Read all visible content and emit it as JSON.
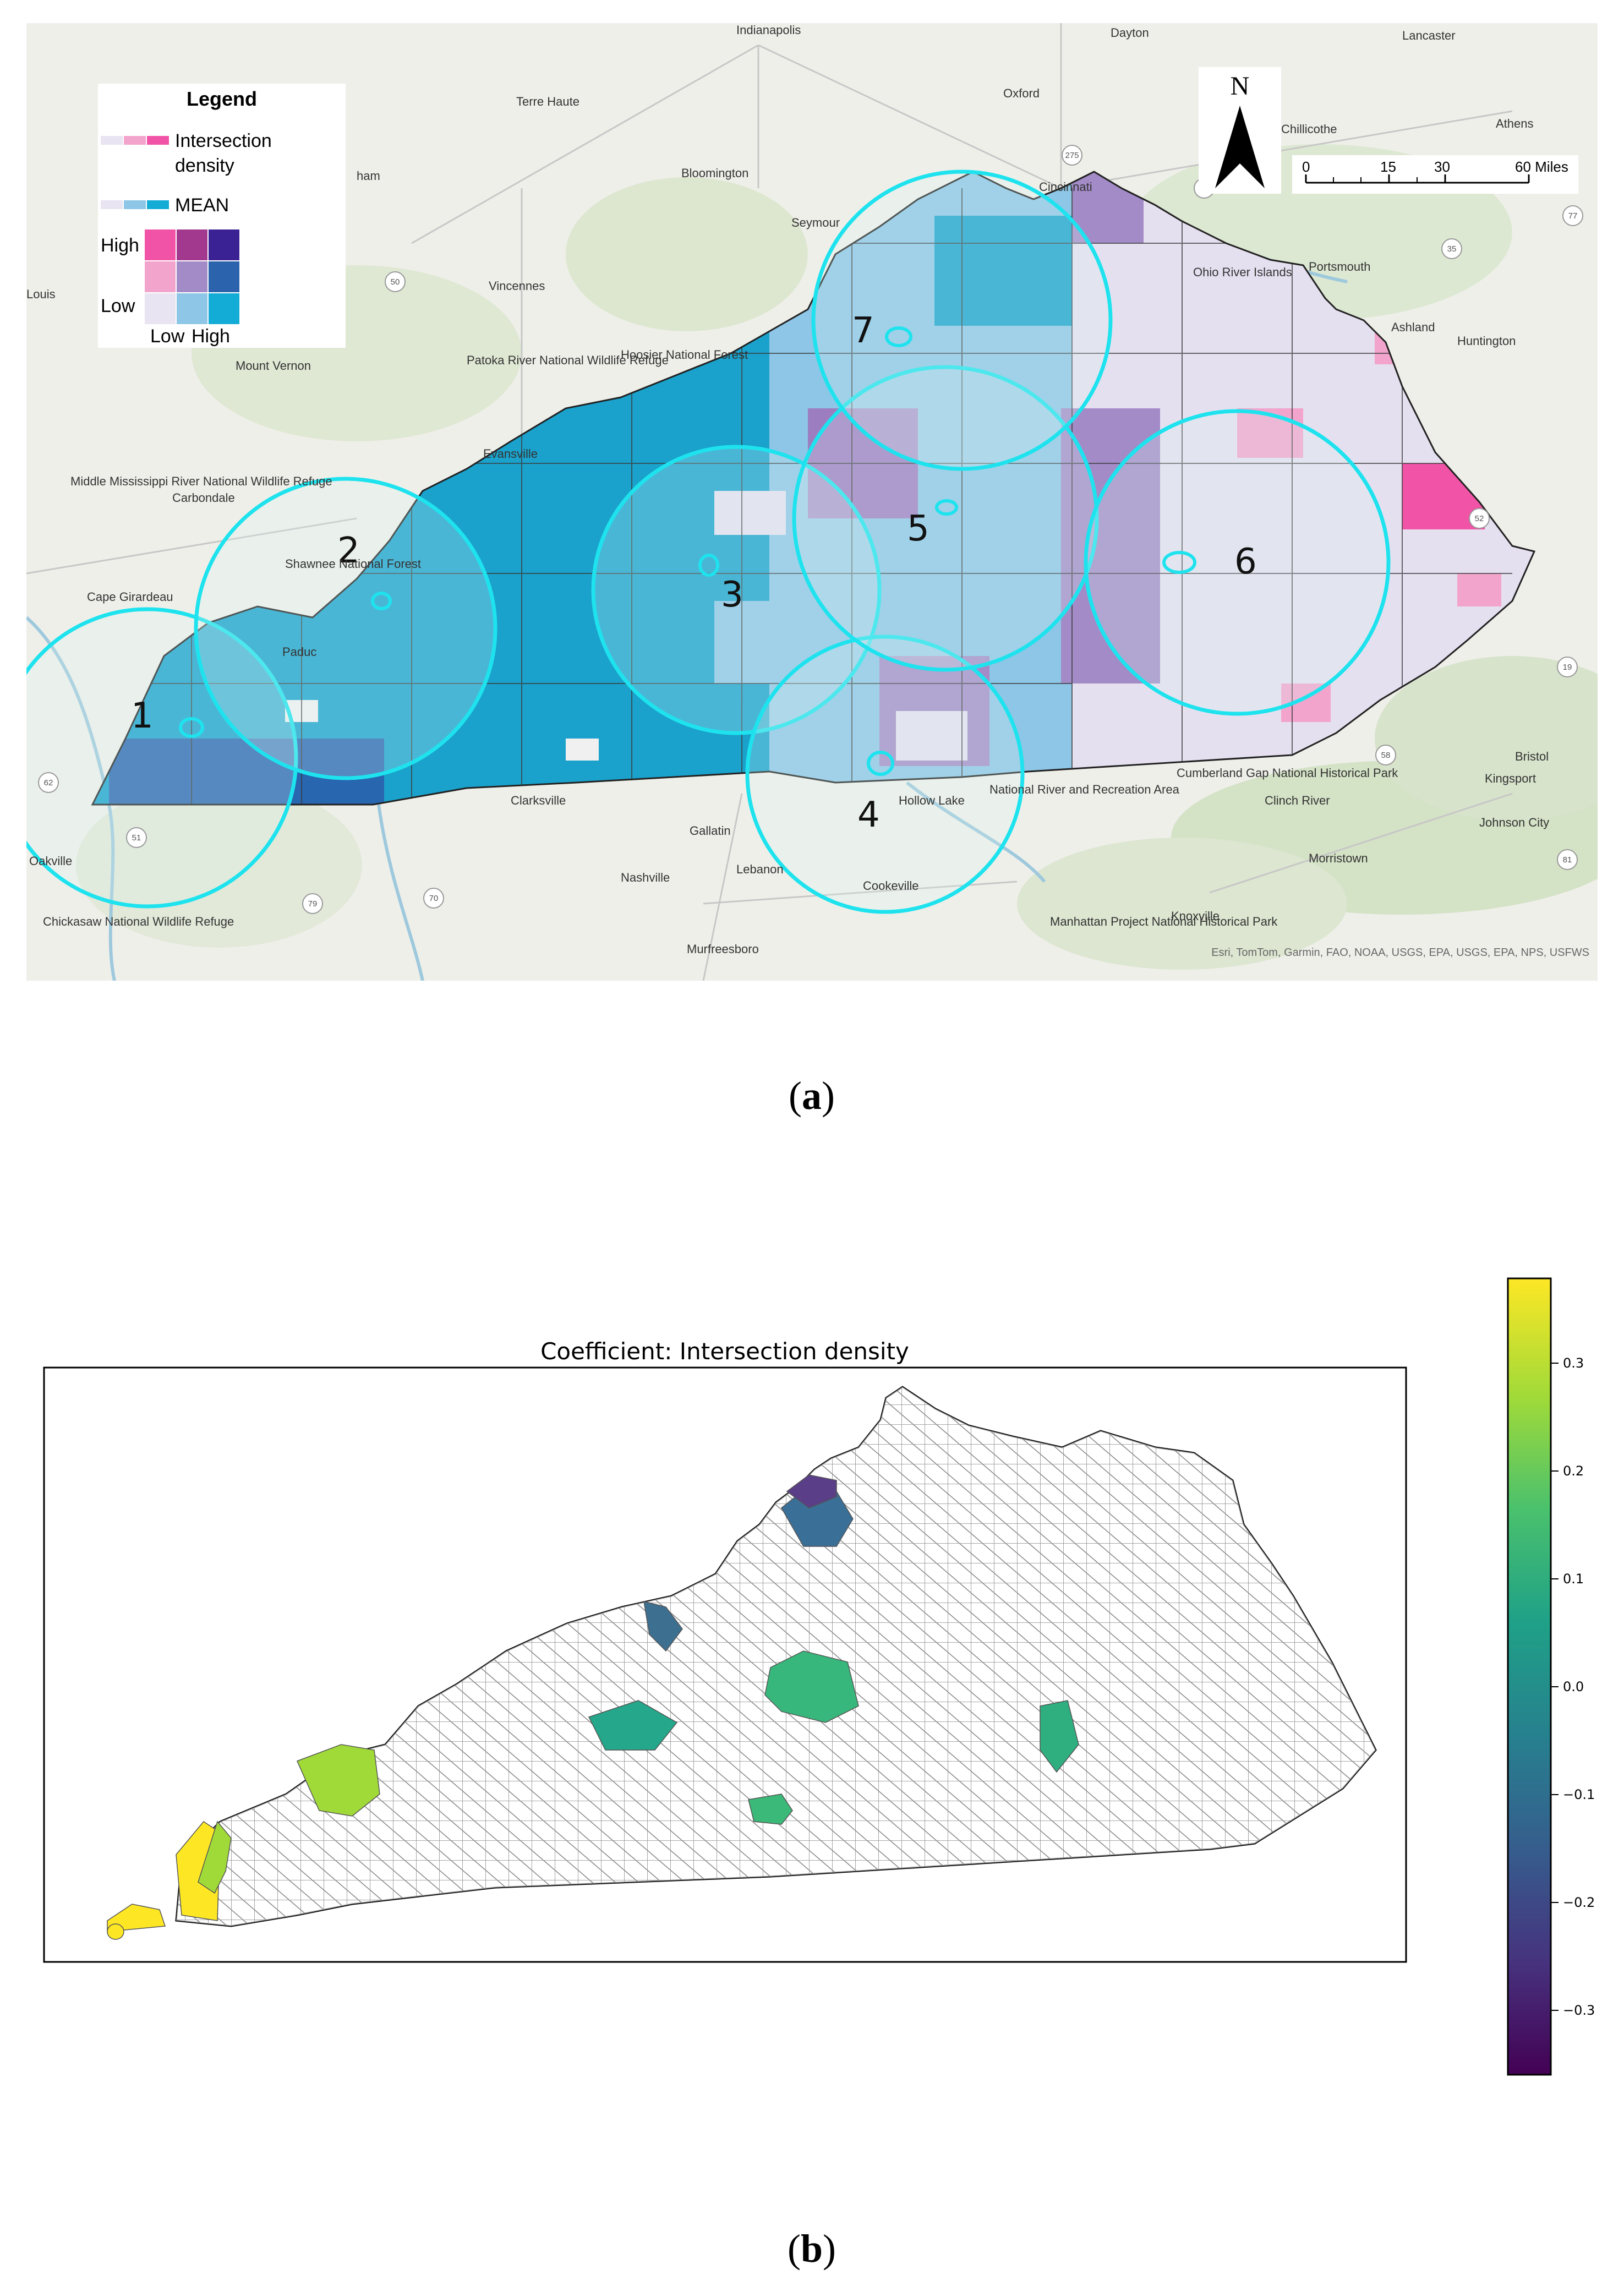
{
  "panel_a": {
    "legend": {
      "title": "Legend",
      "item1": "Intersection",
      "item1b": "density",
      "item2": "MEAN",
      "high": "High",
      "low": "Low",
      "axis_low": "Low",
      "axis_high": "High",
      "bivariate_colors": [
        [
          "#f153a6",
          "#a3398f",
          "#3b2294"
        ],
        [
          "#f3a4cd",
          "#a38bc7",
          "#2b64ad"
        ],
        [
          "#e8e4f1",
          "#8dc6e6",
          "#13acd6"
        ]
      ]
    },
    "north_label": "N",
    "scale": {
      "ticks": [
        "0",
        "15",
        "30",
        "60 Miles"
      ]
    },
    "zones": [
      "1",
      "2",
      "3",
      "4",
      "5",
      "6",
      "7"
    ],
    "places": [
      "Indianapolis",
      "Dayton",
      "Lancaster",
      "Terre Haute",
      "Oxford",
      "Bloomington",
      "Cincinnati",
      "Chillicothe",
      "Athens",
      "Seymour",
      "Portsmouth",
      "Ohio River Islands",
      "Louis",
      "Vincennes",
      "Ashland",
      "Huntington",
      "Mount Vernon",
      "Patoka River National Wildlife Refuge",
      "Hoosier National Forest",
      "Evansville",
      "Carbondale",
      "Middle Mississippi River National Wildlife Refuge",
      "Shawnee National Forest",
      "Cape Girardeau",
      "Paduc",
      "Clarksville",
      "Gallatin",
      "Lebanon",
      "Nashville",
      "Cookeville",
      "Murfreesboro",
      "Oakville",
      "Chickasaw National Wildlife Refuge",
      "Kingsport",
      "Bristol",
      "Johnson City",
      "Morristown",
      "Knoxville",
      "Manhattan Project National Historical Park",
      "National River and Recreation Area",
      "Hollow Lake",
      "Clinch River",
      "Cumberland Gap National Historical Park",
      "ham"
    ],
    "route_shields": [
      "275",
      "62",
      "77",
      "35",
      "50",
      "52",
      "19",
      "58",
      "51",
      "79",
      "70",
      "62",
      "81"
    ],
    "attribution": "Esri, TomTom, Garmin, FAO, NOAA, USGS, EPA, USGS, EPA, NPS, USFWS",
    "colors": {
      "zone_circle": "#1ee3ee",
      "kentucky_west": "#1aa2cc",
      "kentucky_east": "#e5e0f0"
    }
  },
  "caption_a": {
    "label": "a"
  },
  "panel_b": {
    "title": "Coefficient: Intersection density",
    "colorbar_ticks": [
      "0.3",
      "0.2",
      "0.1",
      "0.0",
      "−0.1",
      "−0.2",
      "−0.3"
    ],
    "colorbar_range": [
      -0.36,
      0.38
    ],
    "colormap": "viridis"
  },
  "caption_b": {
    "label": "b"
  }
}
